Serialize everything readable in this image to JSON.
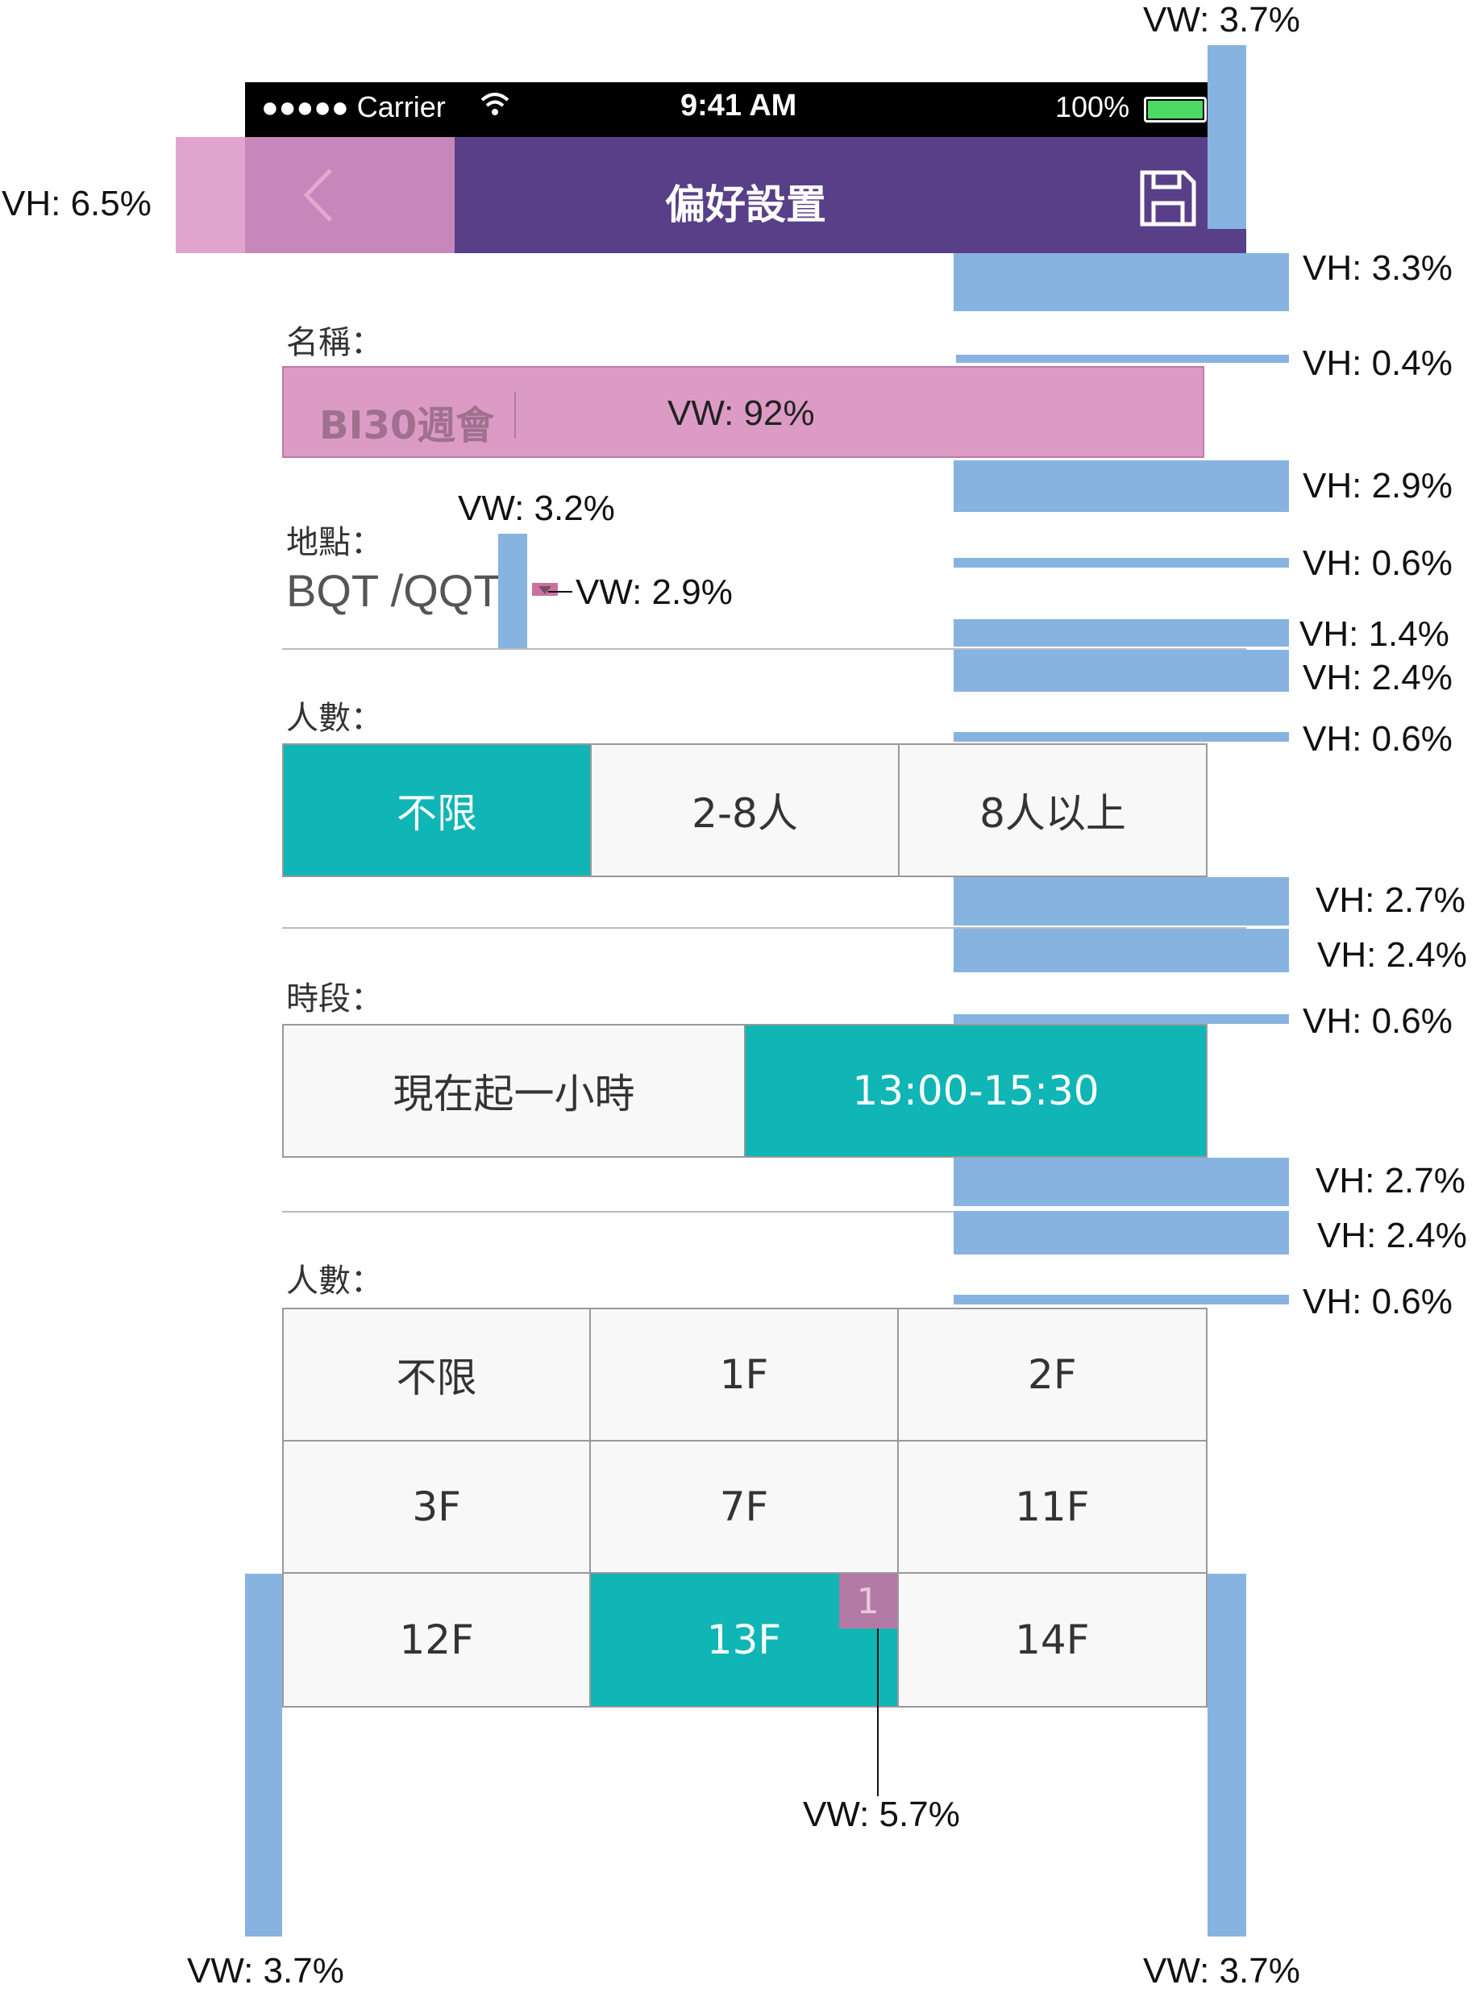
{
  "status_bar": {
    "carrier": "●●●●● Carrier",
    "time": "9:41 AM",
    "battery": "100%"
  },
  "nav": {
    "title": "偏好設置"
  },
  "form": {
    "name_label": "名稱：",
    "name_value": "BI30週會",
    "location_label": "地點：",
    "location_value": "BQT /QQT",
    "people_label": "人數：",
    "people_options": [
      "不限",
      "2-8人",
      "8人以上"
    ],
    "time_label": "時段：",
    "time_options": [
      "現在起一小時",
      "13:00-15:30"
    ],
    "floor_label": "人數：",
    "floor_options": [
      "不限",
      "1F",
      "2F",
      "3F",
      "7F",
      "11F",
      "12F",
      "13F",
      "14F"
    ],
    "floor_badge": "1"
  },
  "annotations": {
    "vw_top": "VW: 3.7%",
    "vh_nav": "VH: 6.5%",
    "vh_1": "VH: 3.3%",
    "vh_2": "VH: 0.4%",
    "vw_name": "VW: 92%",
    "vh_3": "VH: 2.9%",
    "vw_loc_gap": "VW: 3.2%",
    "vw_arrow": "VW: 2.9%",
    "vh_4": "VH: 0.6%",
    "vh_5": "VH: 1.4%",
    "vh_6": "VH: 2.4%",
    "vh_7": "VH: 0.6%",
    "vh_8": "VH: 2.7%",
    "vh_9": "VH: 2.4%",
    "vh_10": "VH: 0.6%",
    "vh_11": "VH: 2.7%",
    "vh_12": "VH: 2.4%",
    "vh_13": "VH: 0.6%",
    "vw_badge": "VW: 5.7%",
    "vw_left": "VW: 3.7%",
    "vw_right": "VW: 3.7%"
  }
}
